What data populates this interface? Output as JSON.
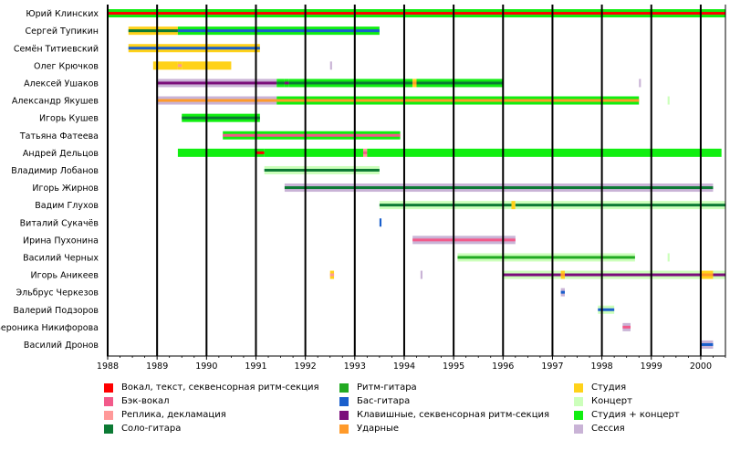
{
  "chart_data": {
    "type": "timeline",
    "title": "",
    "xlim": [
      1988,
      2000.5
    ],
    "x_ticks": [
      "1988",
      "1989",
      "1990",
      "1991",
      "1992",
      "1993",
      "1994",
      "1995",
      "1996",
      "1997",
      "1998",
      "1999",
      "2000"
    ],
    "members": [
      "Юрий Клинских",
      "Сергей Тупикин",
      "Семён Титиевский",
      "Олег Крючков",
      "Алексей Ушаков",
      "Александр Якушев",
      "Игорь Кушев",
      "Татьяна Фатеева",
      "Андрей Дельцов",
      "Владимир Лобанов",
      "Игорь Жирнов",
      "Вадим Глухов",
      "Виталий Сукачёв",
      "Ирина Пухонина",
      "Василий Черных",
      "Игорь Аникеев",
      "Эльбрус Черкезов",
      "Валерий Подзоров",
      "Вероника Никифорова",
      "Василий Дронов"
    ],
    "roles": {
      "vocal": {
        "label": "Вокал, текст, секвенсорная ритм-секция",
        "color": "#ff0000"
      },
      "backvocal": {
        "label": "Бэк-вокал",
        "color": "#f25a8a"
      },
      "replica": {
        "label": "Реплика, декламация",
        "color": "#ff9999"
      },
      "solo": {
        "label": "Соло-гитара",
        "color": "#0c7a34"
      },
      "rhythm": {
        "label": "Ритм-гитара",
        "color": "#22aa22"
      },
      "bass": {
        "label": "Бас-гитара",
        "color": "#1a5fcc"
      },
      "keys": {
        "label": "Клавишные, секвенсорная ритм-секция",
        "color": "#7b0e7b"
      },
      "drums": {
        "label": "Ударные",
        "color": "#ff9a2a"
      },
      "studio": {
        "label": "Студия",
        "color": "#ffd21a"
      },
      "concert": {
        "label": "Концерт",
        "color": "#ccffbb"
      },
      "both": {
        "label": "Студия + концерт",
        "color": "#11ee11"
      },
      "session": {
        "label": "Сессия",
        "color": "#c9b3d6"
      }
    },
    "legend_columns": [
      [
        "vocal",
        "backvocal",
        "replica",
        "solo"
      ],
      [
        "rhythm",
        "bass",
        "keys",
        "drums"
      ],
      [
        "studio",
        "concert",
        "both",
        "session"
      ]
    ],
    "bars": [
      {
        "member": 0,
        "bg": "both",
        "role": "vocal",
        "start": 1988.0,
        "end": 2000.5
      },
      {
        "member": 1,
        "bg": "studio",
        "role": "solo",
        "start": 1988.42,
        "end": 1989.42
      },
      {
        "member": 1,
        "bg": "both",
        "role": "bass",
        "start": 1989.42,
        "end": 1993.5
      },
      {
        "member": 2,
        "bg": "studio",
        "role": "bass",
        "start": 1988.42,
        "end": 1991.08
      },
      {
        "member": 3,
        "bg": "studio",
        "role": "",
        "start": 1988.92,
        "end": 1989.42
      },
      {
        "member": 3,
        "bg": "studio",
        "role": "replica",
        "start": 1989.42,
        "end": 1989.5
      },
      {
        "member": 3,
        "bg": "studio",
        "role": "",
        "start": 1989.5,
        "end": 1990.5
      },
      {
        "member": 3,
        "bg": "session",
        "role": "",
        "start": 1992.5,
        "end": 1992.54
      },
      {
        "member": 4,
        "bg": "session",
        "role": "keys",
        "start": 1989.0,
        "end": 1991.42
      },
      {
        "member": 4,
        "bg": "both",
        "role": "solo",
        "start": 1991.42,
        "end": 1991.58
      },
      {
        "member": 4,
        "bg": "both",
        "role": "keys",
        "start": 1991.58,
        "end": 1991.67
      },
      {
        "member": 4,
        "bg": "both",
        "role": "solo",
        "start": 1991.67,
        "end": 1994.17
      },
      {
        "member": 4,
        "bg": "studio",
        "role": "drums",
        "start": 1994.17,
        "end": 1994.25
      },
      {
        "member": 4,
        "bg": "both",
        "role": "solo",
        "start": 1994.25,
        "end": 1996.0
      },
      {
        "member": 4,
        "bg": "session",
        "role": "",
        "start": 1998.75,
        "end": 1998.79
      },
      {
        "member": 5,
        "bg": "session",
        "role": "drums",
        "start": 1989.0,
        "end": 1991.42
      },
      {
        "member": 5,
        "bg": "both",
        "role": "drums",
        "start": 1991.42,
        "end": 1998.75
      },
      {
        "member": 5,
        "bg": "concert",
        "role": "",
        "start": 1999.33,
        "end": 1999.37
      },
      {
        "member": 6,
        "bg": "both",
        "role": "solo",
        "start": 1989.5,
        "end": 1991.08
      },
      {
        "member": 7,
        "bg": "both",
        "role": "backvocal",
        "start": 1990.33,
        "end": 1993.92
      },
      {
        "member": 8,
        "bg": "both",
        "role": "",
        "start": 1989.42,
        "end": 1991.0
      },
      {
        "member": 8,
        "bg": "both",
        "role": "vocal",
        "start": 1991.0,
        "end": 1991.17
      },
      {
        "member": 8,
        "bg": "both",
        "role": "",
        "start": 1991.17,
        "end": 1993.17
      },
      {
        "member": 8,
        "bg": "replica",
        "role": "backvocal",
        "start": 1993.17,
        "end": 1993.25
      },
      {
        "member": 8,
        "bg": "both",
        "role": "",
        "start": 1993.25,
        "end": 2000.42
      },
      {
        "member": 9,
        "bg": "concert",
        "role": "solo",
        "start": 1991.17,
        "end": 1993.5
      },
      {
        "member": 10,
        "bg": "session",
        "role": "solo",
        "start": 1991.58,
        "end": 2000.25
      },
      {
        "member": 11,
        "bg": "concert",
        "role": "solo",
        "start": 1993.5,
        "end": 1996.17
      },
      {
        "member": 11,
        "bg": "studio",
        "role": "",
        "start": 1996.17,
        "end": 1996.25
      },
      {
        "member": 11,
        "bg": "concert",
        "role": "solo",
        "start": 1996.25,
        "end": 2000.5
      },
      {
        "member": 12,
        "bg": "",
        "role": "bass",
        "start": 1993.5,
        "end": 1993.54
      },
      {
        "member": 13,
        "bg": "session",
        "role": "backvocal",
        "start": 1994.17,
        "end": 1996.25
      },
      {
        "member": 14,
        "bg": "concert",
        "role": "rhythm",
        "start": 1995.08,
        "end": 1998.67
      },
      {
        "member": 14,
        "bg": "concert",
        "role": "",
        "start": 1999.33,
        "end": 1999.37
      },
      {
        "member": 15,
        "bg": "studio",
        "role": "replica",
        "start": 1992.5,
        "end": 1992.58
      },
      {
        "member": 15,
        "bg": "session",
        "role": "",
        "start": 1994.33,
        "end": 1994.37
      },
      {
        "member": 15,
        "bg": "concert",
        "role": "keys",
        "start": 1996.0,
        "end": 1997.17
      },
      {
        "member": 15,
        "bg": "studio",
        "role": "drums",
        "start": 1997.17,
        "end": 1997.25
      },
      {
        "member": 15,
        "bg": "concert",
        "role": "keys",
        "start": 1997.25,
        "end": 2000.0
      },
      {
        "member": 15,
        "bg": "studio",
        "role": "drums",
        "start": 2000.0,
        "end": 2000.25
      },
      {
        "member": 15,
        "bg": "concert",
        "role": "keys",
        "start": 2000.25,
        "end": 2000.5
      },
      {
        "member": 16,
        "bg": "session",
        "role": "bass",
        "start": 1997.17,
        "end": 1997.25
      },
      {
        "member": 17,
        "bg": "concert",
        "role": "bass",
        "start": 1997.92,
        "end": 1998.25
      },
      {
        "member": 18,
        "bg": "session",
        "role": "backvocal",
        "start": 1998.42,
        "end": 1998.58
      },
      {
        "member": 19,
        "bg": "session",
        "role": "bass",
        "start": 2000.0,
        "end": 2000.25
      }
    ]
  }
}
